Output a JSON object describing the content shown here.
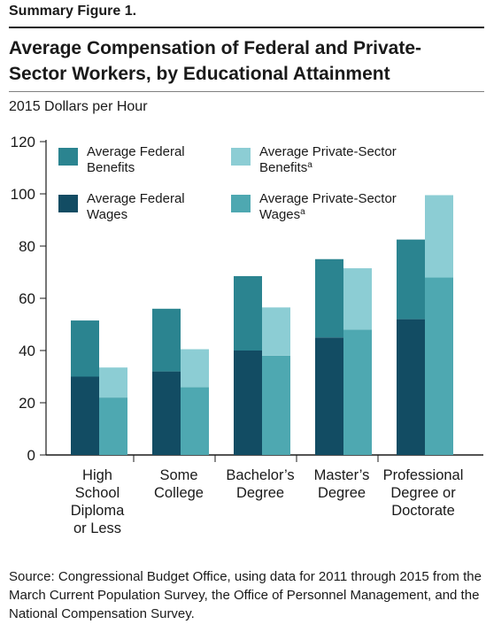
{
  "figure_label": "Summary Figure 1.",
  "title": "Average Compensation of Federal and Private-Sector Workers, by Educational Attainment",
  "units_label": "2015 Dollars per Hour",
  "source": "Source:  Congressional Budget Office, using data for 2011 through 2015 from the March Current Population Survey, the Office of Personnel Management, and the National Compensation Survey.",
  "colors": {
    "federal_benefits": "#2b8490",
    "federal_wages": "#124c63",
    "private_benefits": "#8ccdd4",
    "private_wages": "#4ea8b1"
  },
  "chart_data": {
    "type": "bar",
    "stacked": true,
    "grouped": true,
    "categories": [
      [
        "High",
        "School",
        "Diploma",
        "or Less"
      ],
      [
        "Some",
        "College"
      ],
      [
        "Bachelor’s",
        "Degree"
      ],
      [
        "Master’s",
        "Degree"
      ],
      [
        "Professional",
        "Degree or",
        "Doctorate"
      ]
    ],
    "yticks": [
      0,
      20,
      40,
      60,
      80,
      100,
      120
    ],
    "ylim": [
      0,
      120
    ],
    "series": [
      {
        "name": "Average Federal Wages",
        "group": "federal",
        "values": [
          30,
          32,
          40,
          45,
          52
        ]
      },
      {
        "name": "Average Federal Benefits",
        "group": "federal",
        "values": [
          21.5,
          24,
          28.5,
          30,
          30.5
        ]
      },
      {
        "name": "Average Private-Sector Wages",
        "superscript": "a",
        "group": "private",
        "values": [
          22,
          26,
          38,
          48,
          68
        ]
      },
      {
        "name": "Average Private-Sector Benefits",
        "superscript": "a",
        "group": "private",
        "values": [
          11.5,
          14.5,
          18.5,
          23.5,
          31.5
        ]
      }
    ],
    "legend": [
      {
        "lines": [
          "Average Federal",
          "Benefits"
        ],
        "sup": "",
        "color_key": "federal_benefits"
      },
      {
        "lines": [
          "Average Private-Sector",
          "Benefits"
        ],
        "sup": "a",
        "color_key": "private_benefits"
      },
      {
        "lines": [
          "Average Federal",
          "Wages"
        ],
        "sup": "",
        "color_key": "federal_wages"
      },
      {
        "lines": [
          "Average Private-Sector",
          "Wages"
        ],
        "sup": "a",
        "color_key": "private_wages"
      }
    ],
    "legend_position": "top-left, inside plot"
  }
}
